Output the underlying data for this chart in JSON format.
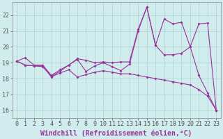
{
  "xlabel": "Windchill (Refroidissement éolien,°C)",
  "line_color": "#993399",
  "bg_color": "#d0ecec",
  "grid_color": "#aad4d4",
  "ylim": [
    15.5,
    22.8
  ],
  "yticks": [
    16,
    17,
    18,
    19,
    20,
    21,
    22
  ],
  "xticks": [
    0,
    1,
    2,
    3,
    4,
    5,
    6,
    7,
    8,
    9,
    10,
    11,
    12,
    13,
    14,
    15,
    16,
    17,
    18,
    19,
    20,
    21,
    22,
    23
  ],
  "tick_fontsize": 6,
  "xlabel_fontsize": 7,
  "marker": "D",
  "markersize": 2.0,
  "linewidth": 0.8,
  "y_top": [
    19.1,
    19.3,
    18.85,
    18.85,
    18.2,
    18.55,
    18.85,
    19.25,
    19.15,
    19.0,
    19.05,
    19.0,
    19.05,
    19.05,
    21.1,
    22.5,
    20.1,
    21.75,
    21.45,
    21.55,
    20.0,
    21.45,
    21.5,
    16.0
  ],
  "y_mid": [
    19.1,
    18.85,
    18.8,
    18.75,
    18.15,
    18.45,
    18.85,
    19.2,
    18.45,
    18.8,
    19.0,
    18.75,
    18.5,
    18.9,
    21.0,
    22.5,
    20.1,
    19.5,
    19.5,
    19.6,
    20.0,
    18.2,
    17.1,
    16.0
  ],
  "y_bot": [
    19.1,
    18.85,
    18.8,
    18.8,
    18.1,
    18.35,
    18.55,
    18.1,
    18.25,
    18.4,
    18.5,
    18.4,
    18.3,
    18.3,
    18.2,
    18.1,
    18.0,
    17.9,
    17.8,
    17.7,
    17.6,
    17.3,
    16.9,
    16.0
  ]
}
